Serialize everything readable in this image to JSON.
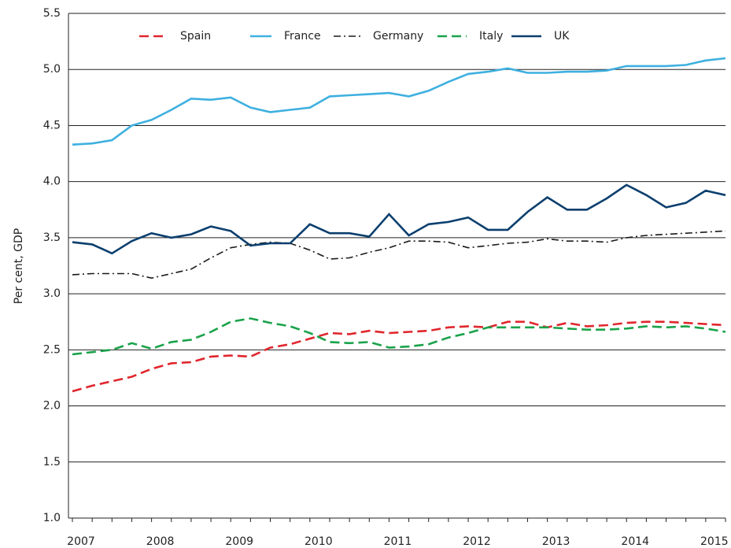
{
  "chart_data": {
    "type": "line",
    "y_label": "Per cent, GDP",
    "categories": [
      "2007",
      null,
      null,
      null,
      "2008",
      null,
      null,
      null,
      "2009",
      null,
      null,
      null,
      "2010",
      null,
      null,
      null,
      "2011",
      null,
      null,
      null,
      "2012",
      null,
      null,
      null,
      "2013",
      null,
      null,
      null,
      "2014",
      null,
      null,
      null,
      "2015",
      null
    ],
    "ylim": [
      1.0,
      5.5
    ],
    "yticks": [
      {
        "value": 1.0,
        "label": "1.0"
      },
      {
        "value": 1.5,
        "label": "1.5"
      },
      {
        "value": 2.0,
        "label": "2.0"
      },
      {
        "value": 2.5,
        "label": "2.5"
      },
      {
        "value": 3.0,
        "label": "3.0"
      },
      {
        "value": 3.5,
        "label": "3.5"
      },
      {
        "value": 4.0,
        "label": "4.0"
      },
      {
        "value": 4.5,
        "label": "4.5"
      },
      {
        "value": 5.0,
        "label": "5.0"
      },
      {
        "value": 5.5,
        "label": "5.5"
      }
    ],
    "grid": true,
    "legend": "top",
    "series": [
      {
        "name": "Spain",
        "color": "#e0262d",
        "dash": "dashed",
        "values": [
          2.13,
          2.18,
          2.22,
          2.26,
          2.33,
          2.38,
          2.39,
          2.44,
          2.45,
          2.44,
          2.52,
          2.55,
          2.6,
          2.65,
          2.64,
          2.67,
          2.65,
          2.66,
          2.67,
          2.7,
          2.71,
          2.7,
          2.75,
          2.75,
          2.7,
          2.74,
          2.71,
          2.72,
          2.74,
          2.75,
          2.75,
          2.74,
          2.73,
          2.72
        ]
      },
      {
        "name": "France",
        "color": "#3eb0e0",
        "dash": "solid",
        "values": [
          4.33,
          4.34,
          4.37,
          4.5,
          4.55,
          4.64,
          4.74,
          4.73,
          4.75,
          4.66,
          4.62,
          4.64,
          4.66,
          4.76,
          4.77,
          4.78,
          4.79,
          4.76,
          4.81,
          4.89,
          4.96,
          4.98,
          5.01,
          4.97,
          4.97,
          4.98,
          4.98,
          4.99,
          5.03,
          5.03,
          5.03,
          5.04,
          5.08,
          5.1
        ]
      },
      {
        "name": "Germany",
        "color": "#1a1a1a",
        "dash": "dash-dot",
        "values": [
          3.17,
          3.18,
          3.18,
          3.18,
          3.14,
          3.18,
          3.22,
          3.32,
          3.41,
          3.44,
          3.46,
          3.45,
          3.39,
          3.31,
          3.32,
          3.37,
          3.41,
          3.47,
          3.47,
          3.46,
          3.41,
          3.43,
          3.45,
          3.46,
          3.49,
          3.47,
          3.47,
          3.46,
          3.5,
          3.52,
          3.53,
          3.54,
          3.55,
          3.56
        ]
      },
      {
        "name": "Italy",
        "color": "#1aa24a",
        "dash": "dashed",
        "values": [
          2.46,
          2.48,
          2.5,
          2.56,
          2.51,
          2.57,
          2.59,
          2.66,
          2.75,
          2.78,
          2.74,
          2.71,
          2.65,
          2.57,
          2.56,
          2.57,
          2.52,
          2.53,
          2.55,
          2.61,
          2.65,
          2.7,
          2.7,
          2.7,
          2.7,
          2.69,
          2.68,
          2.68,
          2.69,
          2.71,
          2.7,
          2.71,
          2.69,
          2.66
        ]
      },
      {
        "name": "UK",
        "color": "#0b3f6e",
        "dash": "solid",
        "values": [
          3.46,
          3.44,
          3.36,
          3.47,
          3.54,
          3.5,
          3.53,
          3.6,
          3.56,
          3.43,
          3.45,
          3.45,
          3.62,
          3.54,
          3.54,
          3.51,
          3.71,
          3.52,
          3.62,
          3.64,
          3.68,
          3.57,
          3.57,
          3.73,
          3.86,
          3.75,
          3.75,
          3.85,
          3.97,
          3.88,
          3.77,
          3.81,
          3.92,
          3.88
        ]
      }
    ]
  }
}
